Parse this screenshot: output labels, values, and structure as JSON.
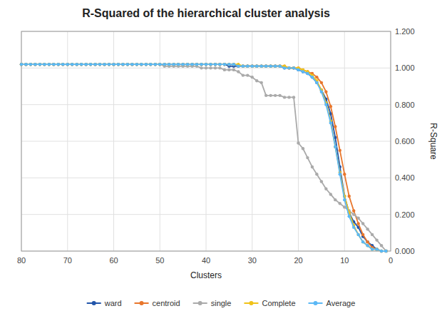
{
  "chart_data": {
    "type": "line",
    "title": "R-Squared of the hierarchical cluster analysis",
    "xlabel": "Clusters",
    "ylabel": "R-Square",
    "xlim": [
      80,
      0
    ],
    "ylim": [
      0.0,
      1.2
    ],
    "xticks": [
      80,
      70,
      60,
      50,
      40,
      30,
      20,
      10,
      0
    ],
    "yticks": [
      {
        "value": 0.0,
        "label": "0.000"
      },
      {
        "value": 0.2,
        "label": "0.200"
      },
      {
        "value": 0.4,
        "label": "0.400"
      },
      {
        "value": 0.6,
        "label": "0.600"
      },
      {
        "value": 0.8,
        "label": "0.800"
      },
      {
        "value": 1.0,
        "label": "1.000"
      },
      {
        "value": 1.2,
        "label": "1.200"
      }
    ],
    "grid": true,
    "legend": "bottom",
    "x": [
      80,
      79,
      78,
      77,
      76,
      75,
      74,
      73,
      72,
      71,
      70,
      69,
      68,
      67,
      66,
      65,
      64,
      63,
      62,
      61,
      60,
      59,
      58,
      57,
      56,
      55,
      54,
      53,
      52,
      51,
      50,
      49,
      48,
      47,
      46,
      45,
      44,
      43,
      42,
      41,
      40,
      39,
      38,
      37,
      36,
      35,
      34,
      33,
      32,
      31,
      30,
      29,
      28,
      27,
      26,
      25,
      24,
      23,
      22,
      21,
      20,
      19,
      18,
      17,
      16,
      15,
      14,
      13,
      12,
      11,
      10,
      9,
      8,
      7,
      6,
      5,
      4,
      3,
      2,
      1
    ],
    "series": [
      {
        "name": "ward",
        "color": "#2255AA",
        "marker": "circle",
        "values": [
          1.02,
          1.02,
          1.02,
          1.02,
          1.02,
          1.02,
          1.02,
          1.02,
          1.02,
          1.02,
          1.02,
          1.02,
          1.02,
          1.02,
          1.02,
          1.02,
          1.02,
          1.02,
          1.02,
          1.02,
          1.02,
          1.02,
          1.02,
          1.02,
          1.02,
          1.02,
          1.02,
          1.02,
          1.02,
          1.02,
          1.02,
          1.02,
          1.02,
          1.02,
          1.02,
          1.02,
          1.02,
          1.02,
          1.02,
          1.02,
          1.02,
          1.02,
          1.02,
          1.02,
          1.02,
          1.01,
          1.01,
          1.01,
          1.01,
          1.01,
          1.01,
          1.01,
          1.01,
          1.01,
          1.01,
          1.01,
          1.01,
          1.0,
          1.0,
          1.0,
          0.99,
          0.98,
          0.97,
          0.95,
          0.92,
          0.88,
          0.83,
          0.75,
          0.62,
          0.46,
          0.3,
          0.21,
          0.16,
          0.13,
          0.08,
          0.05,
          0.03,
          0.01,
          0.0,
          0.0
        ]
      },
      {
        "name": "centroid",
        "color": "#E8762C",
        "marker": "circle",
        "values": [
          1.02,
          1.02,
          1.02,
          1.02,
          1.02,
          1.02,
          1.02,
          1.02,
          1.02,
          1.02,
          1.02,
          1.02,
          1.02,
          1.02,
          1.02,
          1.02,
          1.02,
          1.02,
          1.02,
          1.02,
          1.02,
          1.02,
          1.02,
          1.02,
          1.02,
          1.02,
          1.02,
          1.02,
          1.02,
          1.02,
          1.02,
          1.02,
          1.02,
          1.02,
          1.02,
          1.02,
          1.02,
          1.02,
          1.02,
          1.02,
          1.02,
          1.02,
          1.02,
          1.02,
          1.02,
          1.02,
          1.02,
          1.01,
          1.01,
          1.01,
          1.01,
          1.01,
          1.01,
          1.01,
          1.01,
          1.01,
          1.01,
          1.01,
          1.0,
          1.0,
          1.0,
          0.99,
          0.98,
          0.97,
          0.95,
          0.92,
          0.87,
          0.79,
          0.68,
          0.55,
          0.42,
          0.3,
          0.22,
          0.15,
          0.09,
          0.05,
          0.02,
          0.01,
          0.0,
          0.0
        ]
      },
      {
        "name": "single",
        "color": "#AAAAAA",
        "marker": "circle",
        "values": [
          1.02,
          1.02,
          1.02,
          1.02,
          1.02,
          1.02,
          1.02,
          1.02,
          1.02,
          1.02,
          1.02,
          1.02,
          1.02,
          1.02,
          1.02,
          1.02,
          1.02,
          1.02,
          1.02,
          1.02,
          1.02,
          1.02,
          1.02,
          1.02,
          1.02,
          1.02,
          1.02,
          1.02,
          1.02,
          1.02,
          1.02,
          1.01,
          1.01,
          1.01,
          1.01,
          1.01,
          1.01,
          1.01,
          1.01,
          1.0,
          1.0,
          1.0,
          1.0,
          1.0,
          0.99,
          0.99,
          0.99,
          0.98,
          0.96,
          0.96,
          0.95,
          0.93,
          0.92,
          0.85,
          0.85,
          0.85,
          0.85,
          0.84,
          0.84,
          0.84,
          0.59,
          0.56,
          0.51,
          0.46,
          0.42,
          0.38,
          0.34,
          0.31,
          0.28,
          0.26,
          0.24,
          0.22,
          0.2,
          0.18,
          0.15,
          0.12,
          0.09,
          0.06,
          0.03,
          0.0
        ]
      },
      {
        "name": "Complete",
        "color": "#F0C219",
        "marker": "circle",
        "values": [
          1.02,
          1.02,
          1.02,
          1.02,
          1.02,
          1.02,
          1.02,
          1.02,
          1.02,
          1.02,
          1.02,
          1.02,
          1.02,
          1.02,
          1.02,
          1.02,
          1.02,
          1.02,
          1.02,
          1.02,
          1.02,
          1.02,
          1.02,
          1.02,
          1.02,
          1.02,
          1.02,
          1.02,
          1.02,
          1.02,
          1.02,
          1.02,
          1.02,
          1.02,
          1.02,
          1.02,
          1.02,
          1.02,
          1.02,
          1.02,
          1.02,
          1.02,
          1.02,
          1.02,
          1.02,
          1.02,
          1.02,
          1.02,
          1.01,
          1.01,
          1.01,
          1.01,
          1.01,
          1.01,
          1.01,
          1.01,
          1.01,
          1.01,
          1.0,
          1.0,
          1.0,
          0.99,
          0.98,
          0.96,
          0.93,
          0.88,
          0.81,
          0.71,
          0.57,
          0.43,
          0.3,
          0.21,
          0.14,
          0.09,
          0.05,
          0.03,
          0.01,
          0.01,
          0.0,
          0.0
        ]
      },
      {
        "name": "Average",
        "color": "#5BB8F5",
        "marker": "circle",
        "values": [
          1.02,
          1.02,
          1.02,
          1.02,
          1.02,
          1.02,
          1.02,
          1.02,
          1.02,
          1.02,
          1.02,
          1.02,
          1.02,
          1.02,
          1.02,
          1.02,
          1.02,
          1.02,
          1.02,
          1.02,
          1.02,
          1.02,
          1.02,
          1.02,
          1.02,
          1.02,
          1.02,
          1.02,
          1.02,
          1.02,
          1.02,
          1.02,
          1.02,
          1.02,
          1.02,
          1.02,
          1.02,
          1.02,
          1.02,
          1.02,
          1.02,
          1.02,
          1.02,
          1.02,
          1.02,
          1.02,
          1.02,
          1.01,
          1.01,
          1.01,
          1.01,
          1.01,
          1.01,
          1.01,
          1.01,
          1.01,
          1.01,
          1.0,
          1.0,
          1.0,
          0.99,
          0.98,
          0.97,
          0.95,
          0.92,
          0.87,
          0.8,
          0.7,
          0.57,
          0.42,
          0.28,
          0.19,
          0.13,
          0.09,
          0.05,
          0.03,
          0.01,
          0.01,
          0.0,
          0.0
        ]
      }
    ]
  }
}
